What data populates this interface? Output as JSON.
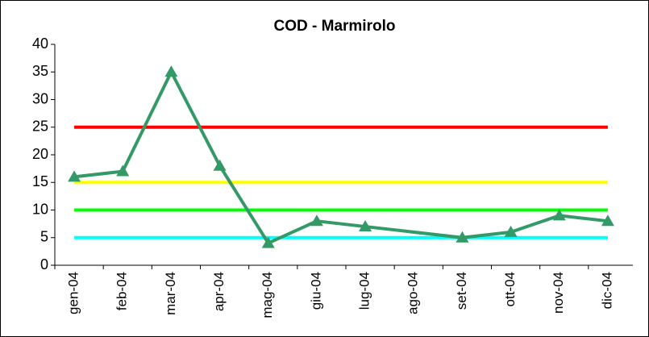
{
  "chart_data": {
    "type": "line",
    "title": "COD - Marmirolo",
    "categories": [
      "gen-04",
      "feb-04",
      "mar-04",
      "apr-04",
      "mag-04",
      "giu-04",
      "lug-04",
      "ago-04",
      "set-04",
      "ott-04",
      "nov-04",
      "dic-04"
    ],
    "series": [
      {
        "color": "#339966",
        "values": [
          16,
          17,
          35,
          18,
          4,
          8,
          7,
          null,
          5,
          6,
          9,
          8
        ]
      }
    ],
    "reference_lines": [
      {
        "value": 25,
        "color": "#ff0000"
      },
      {
        "value": 15,
        "color": "#ffff00"
      },
      {
        "value": 10,
        "color": "#00ff00"
      },
      {
        "value": 5,
        "color": "#00ffff"
      }
    ],
    "ylim": [
      0,
      40
    ],
    "yticks": [
      0,
      5,
      10,
      15,
      20,
      25,
      30,
      35,
      40
    ],
    "grid": false
  }
}
